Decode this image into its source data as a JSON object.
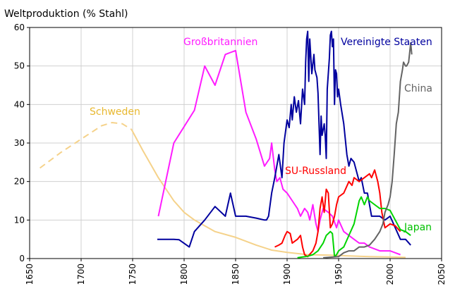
{
  "chart_data": {
    "type": "line",
    "title": "Weltproduktion (% Stahl)",
    "xlabel": "",
    "ylabel": "",
    "xlim": [
      1650,
      2050
    ],
    "ylim": [
      0,
      60
    ],
    "x_ticks": [
      1650,
      1700,
      1750,
      1800,
      1850,
      1900,
      1950,
      2000,
      2050
    ],
    "y_ticks": [
      0,
      10,
      20,
      30,
      40,
      50,
      60
    ],
    "grid": true,
    "legend": "none (direct labels)",
    "series": [
      {
        "name": "Schweden",
        "color": "#f5d28a",
        "estimated_segment": [
          [
            1660,
            23.5
          ],
          [
            1680,
            27.5
          ],
          [
            1700,
            31
          ],
          [
            1720,
            34.5
          ],
          [
            1730,
            35.3
          ],
          [
            1740,
            35
          ],
          [
            1749,
            33.5
          ]
        ],
        "values": [
          [
            1749,
            33.5
          ],
          [
            1760,
            28
          ],
          [
            1775,
            21
          ],
          [
            1790,
            15
          ],
          [
            1800,
            12
          ],
          [
            1810,
            10
          ],
          [
            1820,
            8.5
          ],
          [
            1830,
            7
          ],
          [
            1850,
            5.5
          ],
          [
            1870,
            3.5
          ],
          [
            1885,
            2.2
          ],
          [
            1900,
            1.6
          ],
          [
            1920,
            1
          ],
          [
            1940,
            0.9
          ],
          [
            1960,
            0.7
          ],
          [
            1980,
            0.5
          ],
          [
            2000,
            0.4
          ],
          [
            2015,
            0.3
          ]
        ]
      },
      {
        "name": "Großbritannien",
        "color": "#ff1cff",
        "values": [
          [
            1775,
            11
          ],
          [
            1790,
            30
          ],
          [
            1810,
            38.5
          ],
          [
            1820,
            50
          ],
          [
            1830,
            45
          ],
          [
            1840,
            53
          ],
          [
            1845,
            53.5
          ],
          [
            1850,
            54
          ],
          [
            1860,
            38
          ],
          [
            1870,
            31
          ],
          [
            1878,
            24
          ],
          [
            1883,
            26
          ],
          [
            1885,
            30
          ],
          [
            1888,
            23
          ],
          [
            1890,
            20
          ],
          [
            1893,
            21
          ],
          [
            1896,
            18
          ],
          [
            1900,
            17
          ],
          [
            1905,
            15
          ],
          [
            1910,
            13
          ],
          [
            1913,
            11
          ],
          [
            1917,
            13
          ],
          [
            1920,
            12
          ],
          [
            1922,
            10
          ],
          [
            1925,
            14
          ],
          [
            1928,
            9
          ],
          [
            1930,
            7
          ],
          [
            1932,
            10
          ],
          [
            1935,
            13
          ],
          [
            1940,
            12
          ],
          [
            1944,
            11
          ],
          [
            1948,
            8
          ],
          [
            1950,
            10
          ],
          [
            1955,
            7
          ],
          [
            1960,
            6
          ],
          [
            1965,
            5
          ],
          [
            1970,
            4
          ],
          [
            1975,
            4
          ],
          [
            1980,
            3
          ],
          [
            1985,
            2.5
          ],
          [
            1990,
            2
          ],
          [
            1995,
            2
          ],
          [
            2000,
            2
          ],
          [
            2005,
            1.5
          ],
          [
            2010,
            1
          ]
        ]
      },
      {
        "name": "Vereinigte Staaten",
        "color": "#00009e",
        "values": [
          [
            1774,
            5
          ],
          [
            1790,
            5
          ],
          [
            1795,
            4.9
          ],
          [
            1805,
            3
          ],
          [
            1810,
            7
          ],
          [
            1820,
            10
          ],
          [
            1830,
            13.5
          ],
          [
            1840,
            11
          ],
          [
            1845,
            17
          ],
          [
            1850,
            11
          ],
          [
            1860,
            11
          ],
          [
            1870,
            10.5
          ],
          [
            1878,
            10
          ],
          [
            1880,
            10
          ],
          [
            1882,
            11
          ],
          [
            1885,
            17
          ],
          [
            1888,
            21
          ],
          [
            1890,
            24
          ],
          [
            1892,
            27
          ],
          [
            1895,
            21
          ],
          [
            1897,
            30
          ],
          [
            1900,
            36
          ],
          [
            1902,
            34
          ],
          [
            1904,
            40
          ],
          [
            1905,
            36
          ],
          [
            1907,
            42
          ],
          [
            1909,
            38
          ],
          [
            1911,
            41
          ],
          [
            1913,
            35
          ],
          [
            1915,
            44
          ],
          [
            1917,
            40
          ],
          [
            1918,
            51
          ],
          [
            1919,
            57
          ],
          [
            1920,
            59
          ],
          [
            1921,
            46
          ],
          [
            1922,
            57
          ],
          [
            1924,
            48
          ],
          [
            1926,
            53
          ],
          [
            1927,
            49
          ],
          [
            1929,
            47
          ],
          [
            1930,
            43
          ],
          [
            1932,
            27
          ],
          [
            1933,
            37
          ],
          [
            1934,
            32
          ],
          [
            1936,
            35
          ],
          [
            1937,
            32
          ],
          [
            1938,
            26
          ],
          [
            1939,
            44
          ],
          [
            1941,
            52
          ],
          [
            1942,
            58
          ],
          [
            1943,
            59
          ],
          [
            1944,
            55
          ],
          [
            1945,
            57
          ],
          [
            1946,
            40
          ],
          [
            1947,
            49
          ],
          [
            1948,
            48
          ],
          [
            1949,
            42
          ],
          [
            1950,
            44
          ],
          [
            1952,
            40
          ],
          [
            1955,
            35
          ],
          [
            1958,
            27
          ],
          [
            1960,
            24
          ],
          [
            1962,
            26
          ],
          [
            1965,
            25
          ],
          [
            1968,
            22
          ],
          [
            1970,
            20
          ],
          [
            1972,
            21
          ],
          [
            1975,
            17
          ],
          [
            1978,
            17
          ],
          [
            1980,
            14
          ],
          [
            1982,
            11
          ],
          [
            1985,
            11
          ],
          [
            1990,
            11
          ],
          [
            1995,
            10
          ],
          [
            2000,
            11
          ],
          [
            2005,
            8
          ],
          [
            2010,
            5
          ],
          [
            2015,
            5
          ],
          [
            2020,
            3.5
          ]
        ]
      },
      {
        "name": "SU-Russland",
        "color": "#ff0000",
        "values": [
          [
            1888,
            3
          ],
          [
            1892,
            3.5
          ],
          [
            1895,
            4
          ],
          [
            1898,
            6
          ],
          [
            1900,
            7
          ],
          [
            1903,
            6.5
          ],
          [
            1905,
            4
          ],
          [
            1910,
            5
          ],
          [
            1913,
            6
          ],
          [
            1915,
            3
          ],
          [
            1917,
            1
          ],
          [
            1920,
            0.5
          ],
          [
            1925,
            2
          ],
          [
            1928,
            4
          ],
          [
            1930,
            7
          ],
          [
            1932,
            13
          ],
          [
            1934,
            16
          ],
          [
            1936,
            12
          ],
          [
            1938,
            18
          ],
          [
            1940,
            17
          ],
          [
            1942,
            8
          ],
          [
            1944,
            9
          ],
          [
            1946,
            11
          ],
          [
            1948,
            14
          ],
          [
            1950,
            16
          ],
          [
            1955,
            17
          ],
          [
            1960,
            20
          ],
          [
            1963,
            19
          ],
          [
            1965,
            21
          ],
          [
            1970,
            20
          ],
          [
            1975,
            21
          ],
          [
            1980,
            22
          ],
          [
            1982,
            21
          ],
          [
            1985,
            23
          ],
          [
            1988,
            20
          ],
          [
            1990,
            17
          ],
          [
            1992,
            12
          ],
          [
            1995,
            8
          ],
          [
            2000,
            9
          ],
          [
            2005,
            8.5
          ],
          [
            2010,
            7
          ]
        ]
      },
      {
        "name": "Japan",
        "color": "#00d400",
        "values": [
          [
            1910,
            0.2
          ],
          [
            1915,
            0.4
          ],
          [
            1920,
            0.6
          ],
          [
            1925,
            1
          ],
          [
            1930,
            2
          ],
          [
            1935,
            4
          ],
          [
            1938,
            6
          ],
          [
            1940,
            6.5
          ],
          [
            1942,
            7
          ],
          [
            1944,
            6.5
          ],
          [
            1946,
            0.5
          ],
          [
            1948,
            1
          ],
          [
            1950,
            2
          ],
          [
            1955,
            3
          ],
          [
            1960,
            6
          ],
          [
            1965,
            9
          ],
          [
            1970,
            15
          ],
          [
            1972,
            16
          ],
          [
            1975,
            14
          ],
          [
            1978,
            16
          ],
          [
            1980,
            15
          ],
          [
            1985,
            14
          ],
          [
            1990,
            13
          ],
          [
            1995,
            13
          ],
          [
            2000,
            12.5
          ],
          [
            2005,
            10
          ],
          [
            2010,
            7.5
          ],
          [
            2015,
            7
          ],
          [
            2020,
            6
          ]
        ]
      },
      {
        "name": "China",
        "color": "#636363",
        "values": [
          [
            1935,
            0.2
          ],
          [
            1950,
            0.5
          ],
          [
            1955,
            1.5
          ],
          [
            1960,
            2
          ],
          [
            1965,
            2
          ],
          [
            1970,
            3
          ],
          [
            1975,
            3
          ],
          [
            1980,
            3.5
          ],
          [
            1985,
            5
          ],
          [
            1990,
            7
          ],
          [
            1993,
            9
          ],
          [
            1995,
            12
          ],
          [
            1998,
            14
          ],
          [
            2000,
            16
          ],
          [
            2002,
            20
          ],
          [
            2004,
            27
          ],
          [
            2006,
            35
          ],
          [
            2008,
            38
          ],
          [
            2010,
            46
          ],
          [
            2012,
            49
          ],
          [
            2013,
            51
          ],
          [
            2015,
            50
          ],
          [
            2016,
            50
          ],
          [
            2018,
            51
          ],
          [
            2020,
            56
          ],
          [
            2021,
            53
          ]
        ]
      }
    ],
    "labels": {
      "Schweden": "Schweden",
      "Grossbritannien": "Großbritannien",
      "USA": "Vereinigte Staaten",
      "SU": "SU-Russland",
      "Japan": "Japan",
      "China": "China"
    }
  }
}
